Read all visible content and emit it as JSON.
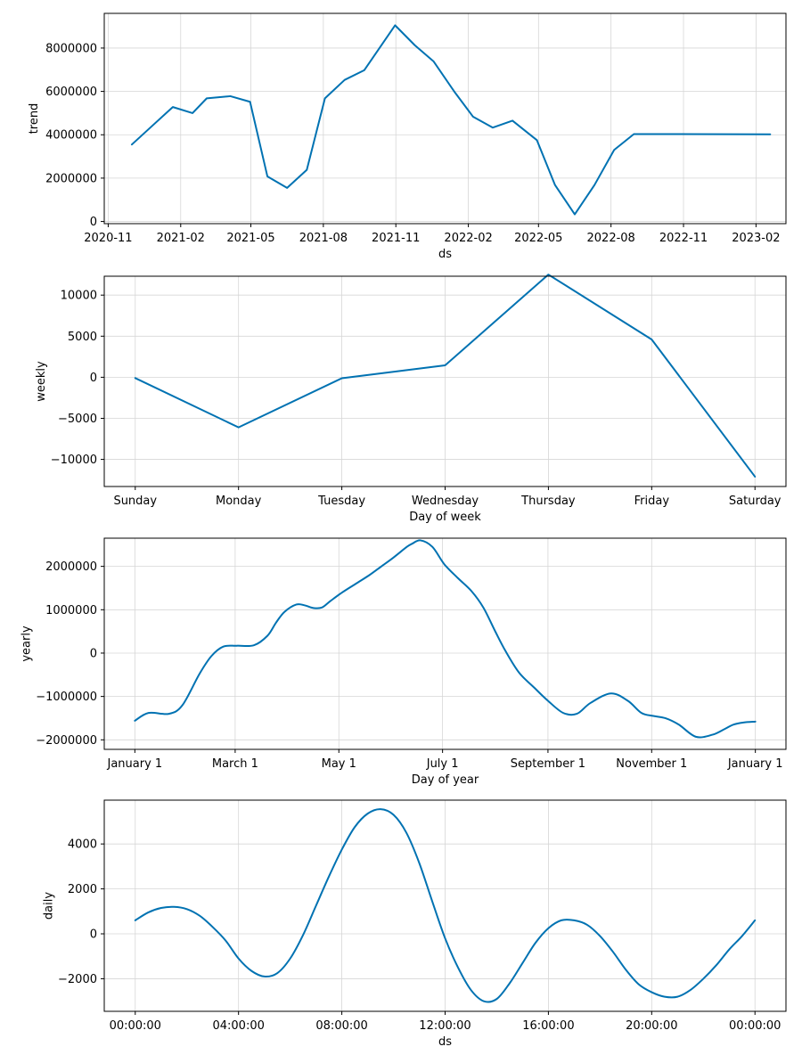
{
  "colors": {
    "series": "#0072B2",
    "grid": "#d6d6d6",
    "axis": "#000000"
  },
  "chart_data": [
    {
      "id": "trend",
      "type": "line",
      "xlabel": "ds",
      "ylabel": "trend",
      "grid": true,
      "x_kind": "date",
      "xlim": [
        "2020-10-27",
        "2023-03-11"
      ],
      "ylim": [
        -100000,
        9600000
      ],
      "xticks": [
        {
          "value": "2020-11-01",
          "label": "2020-11"
        },
        {
          "value": "2021-02-01",
          "label": "2021-02"
        },
        {
          "value": "2021-05-01",
          "label": "2021-05"
        },
        {
          "value": "2021-08-01",
          "label": "2021-08"
        },
        {
          "value": "2021-11-01",
          "label": "2021-11"
        },
        {
          "value": "2022-02-01",
          "label": "2022-02"
        },
        {
          "value": "2022-05-01",
          "label": "2022-05"
        },
        {
          "value": "2022-08-01",
          "label": "2022-08"
        },
        {
          "value": "2022-11-01",
          "label": "2022-11"
        },
        {
          "value": "2023-02-01",
          "label": "2023-02"
        }
      ],
      "yticks": [
        {
          "value": 0,
          "label": "0"
        },
        {
          "value": 2000000,
          "label": "2000000"
        },
        {
          "value": 4000000,
          "label": "4000000"
        },
        {
          "value": 6000000,
          "label": "6000000"
        },
        {
          "value": 8000000,
          "label": "8000000"
        }
      ],
      "x": [
        "2020-12-01",
        "2020-12-28",
        "2021-01-22",
        "2021-02-16",
        "2021-03-06",
        "2021-04-05",
        "2021-04-30",
        "2021-05-22",
        "2021-06-16",
        "2021-07-11",
        "2021-08-03",
        "2021-08-28",
        "2021-09-22",
        "2021-10-31",
        "2021-11-25",
        "2021-12-19",
        "2022-01-14",
        "2022-02-07",
        "2022-03-04",
        "2022-03-29",
        "2022-04-29",
        "2022-05-22",
        "2022-06-16",
        "2022-07-11",
        "2022-08-05",
        "2022-08-30",
        "2022-10-21",
        "2023-02-19"
      ],
      "y": [
        3550000,
        4450000,
        5280000,
        5000000,
        5680000,
        5780000,
        5520000,
        2080000,
        1550000,
        2380000,
        5680000,
        6530000,
        6980000,
        9050000,
        8130000,
        7380000,
        6000000,
        4830000,
        4330000,
        4650000,
        3750000,
        1680000,
        330000,
        1680000,
        3300000,
        4030000,
        4030000,
        4020000
      ]
    },
    {
      "id": "weekly",
      "type": "line",
      "xlabel": "Day of week",
      "ylabel": "weekly",
      "grid": true,
      "x_kind": "category",
      "xlim": [
        -0.3,
        6.3
      ],
      "ylim": [
        -13300,
        12300
      ],
      "categories": [
        "Sunday",
        "Monday",
        "Tuesday",
        "Wednesday",
        "Thursday",
        "Friday",
        "Saturday"
      ],
      "yticks": [
        {
          "value": -10000,
          "label": "−10000"
        },
        {
          "value": -5000,
          "label": "−5000"
        },
        {
          "value": 0,
          "label": "0"
        },
        {
          "value": 5000,
          "label": "5000"
        },
        {
          "value": 10000,
          "label": "10000"
        }
      ],
      "values": [
        -100,
        -6100,
        -120,
        1450,
        12500,
        4600,
        -12100
      ]
    },
    {
      "id": "yearly",
      "type": "line",
      "xlabel": "Day of year",
      "ylabel": "yearly",
      "grid": true,
      "x_kind": "day",
      "xlim": [
        -18,
        383
      ],
      "ylim": [
        -2220000,
        2650000
      ],
      "xticks": [
        {
          "value": 0,
          "label": "January 1"
        },
        {
          "value": 59,
          "label": "March 1"
        },
        {
          "value": 120,
          "label": "May 1"
        },
        {
          "value": 181,
          "label": "July 1"
        },
        {
          "value": 243,
          "label": "September 1"
        },
        {
          "value": 304,
          "label": "November 1"
        },
        {
          "value": 365,
          "label": "January 1"
        }
      ],
      "yticks": [
        {
          "value": -2000000,
          "label": "−2000000"
        },
        {
          "value": -1000000,
          "label": "−1000000"
        },
        {
          "value": 0,
          "label": "0"
        },
        {
          "value": 1000000,
          "label": "1000000"
        },
        {
          "value": 2000000,
          "label": "2000000"
        }
      ],
      "x": [
        0,
        8,
        20,
        28,
        38,
        45,
        52,
        60,
        70,
        78,
        83,
        88,
        95,
        100,
        105,
        110,
        115,
        122,
        130,
        138,
        145,
        152,
        160,
        163,
        168,
        175,
        182,
        190,
        198,
        205,
        212,
        218,
        226,
        235,
        243,
        252,
        260,
        268,
        280,
        290,
        298,
        305,
        312,
        320,
        330,
        340,
        347,
        352,
        358,
        365
      ],
      "y": [
        -1560000,
        -1380000,
        -1400000,
        -1200000,
        -480000,
        -70000,
        150000,
        170000,
        180000,
        400000,
        700000,
        950000,
        1120000,
        1100000,
        1040000,
        1050000,
        1200000,
        1400000,
        1600000,
        1800000,
        2000000,
        2200000,
        2450000,
        2520000,
        2600000,
        2450000,
        2050000,
        1730000,
        1430000,
        1050000,
        500000,
        50000,
        -450000,
        -800000,
        -1100000,
        -1380000,
        -1400000,
        -1150000,
        -930000,
        -1100000,
        -1380000,
        -1450000,
        -1500000,
        -1650000,
        -1930000,
        -1880000,
        -1750000,
        -1650000,
        -1600000,
        -1580000
      ]
    },
    {
      "id": "daily",
      "type": "line",
      "xlabel": "ds",
      "ylabel": "daily",
      "grid": true,
      "x_kind": "hours",
      "xlim": [
        -1.2,
        25.2
      ],
      "ylim": [
        -3450,
        5950
      ],
      "xticks": [
        {
          "value": 0,
          "label": "00:00:00"
        },
        {
          "value": 4,
          "label": "04:00:00"
        },
        {
          "value": 8,
          "label": "08:00:00"
        },
        {
          "value": 12,
          "label": "12:00:00"
        },
        {
          "value": 16,
          "label": "16:00:00"
        },
        {
          "value": 20,
          "label": "20:00:00"
        },
        {
          "value": 24,
          "label": "00:00:00"
        }
      ],
      "yticks": [
        {
          "value": -2000,
          "label": "−2000"
        },
        {
          "value": 0,
          "label": "0"
        },
        {
          "value": 2000,
          "label": "2000"
        },
        {
          "value": 4000,
          "label": "4000"
        }
      ],
      "x": [
        0,
        0.5,
        1,
        1.5,
        2,
        2.5,
        3,
        3.5,
        4,
        4.5,
        5,
        5.5,
        6,
        6.5,
        7,
        7.5,
        8,
        8.5,
        9,
        9.5,
        10,
        10.5,
        11,
        11.5,
        12,
        12.5,
        13,
        13.5,
        14,
        14.5,
        15,
        15.5,
        16,
        16.5,
        17,
        17.5,
        18,
        18.5,
        19,
        19.5,
        20,
        20.5,
        21,
        21.5,
        22,
        22.5,
        23,
        23.5,
        24
      ],
      "y": [
        600,
        950,
        1150,
        1200,
        1100,
        800,
        300,
        -300,
        -1100,
        -1650,
        -1900,
        -1750,
        -1100,
        -50,
        1250,
        2550,
        3750,
        4750,
        5350,
        5550,
        5300,
        4500,
        3150,
        1450,
        -200,
        -1500,
        -2500,
        -3000,
        -2900,
        -2200,
        -1300,
        -400,
        250,
        600,
        600,
        400,
        -100,
        -800,
        -1600,
        -2250,
        -2600,
        -2800,
        -2800,
        -2500,
        -2000,
        -1400,
        -700,
        -100,
        600
      ]
    }
  ]
}
